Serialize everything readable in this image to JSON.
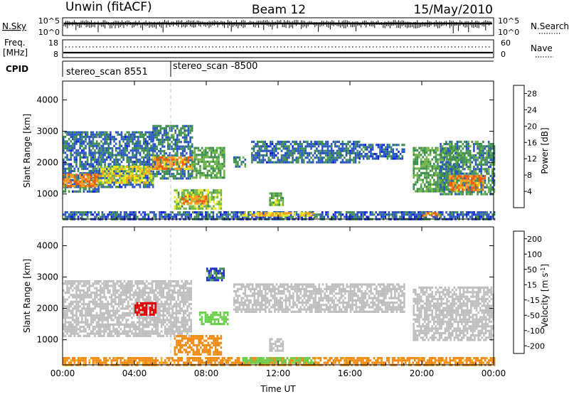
{
  "header": {
    "station": "Unwin (fitACF)",
    "beam": "Beam 12",
    "date": "15/May/2010"
  },
  "panels": {
    "sky": {
      "left_label": "N.Sky",
      "left_ticks": [
        "10^5",
        "10^0"
      ],
      "right_ticks": [
        "10^5",
        "10^0"
      ],
      "right_label": "N.Search"
    },
    "freq": {
      "left_label": "Freq.",
      "left_unit": "[MHz]",
      "left_ticks": [
        "18",
        "8"
      ],
      "right_ticks": [
        "60",
        "0"
      ],
      "right_label": "Nave"
    },
    "cpid": {
      "label": "CPID",
      "programs": [
        {
          "label": "stereo_scan 8551",
          "start_hour": 0
        },
        {
          "label": "stereo_scan -8500",
          "start_hour": 6
        }
      ]
    }
  },
  "chart_data": [
    {
      "type": "heatmap",
      "title": "",
      "xlabel": "Time UT",
      "ylabel": "Slant Range [km]",
      "xlim": [
        0,
        24
      ],
      "ylim": [
        200,
        4600
      ],
      "x_ticks": [
        "00:00",
        "04:00",
        "08:00",
        "12:00",
        "16:00",
        "20:00",
        "00:00"
      ],
      "y_ticks": [
        "1000",
        "2000",
        "3000",
        "4000"
      ],
      "colorbar": {
        "label": "Power [dB]",
        "ticks": [
          "28",
          "24",
          "20",
          "16",
          "12",
          "8",
          "4"
        ],
        "range": [
          0,
          30
        ],
        "colors": [
          "#0a1ee6",
          "#2a56c0",
          "#3f8e52",
          "#6fb548",
          "#eaea22",
          "#f5a020",
          "#f05a10",
          "#e00000"
        ]
      },
      "echo_regions": [
        {
          "t0": 0.0,
          "t1": 2.0,
          "r0": 1100,
          "r1": 3000,
          "value": 7
        },
        {
          "t0": 0.0,
          "t1": 2.0,
          "r0": 1250,
          "r1": 1650,
          "value": 22
        },
        {
          "t0": 2.0,
          "t1": 5.0,
          "r0": 1200,
          "r1": 3000,
          "value": 7
        },
        {
          "t0": 2.0,
          "t1": 5.0,
          "r0": 1350,
          "r1": 1900,
          "value": 17
        },
        {
          "t0": 5.0,
          "t1": 7.2,
          "r0": 1500,
          "r1": 3200,
          "value": 8
        },
        {
          "t0": 5.0,
          "t1": 7.2,
          "r0": 1800,
          "r1": 2200,
          "value": 21
        },
        {
          "t0": 6.2,
          "t1": 8.8,
          "r0": 550,
          "r1": 1150,
          "value": 14
        },
        {
          "t0": 6.6,
          "t1": 8.0,
          "r0": 700,
          "r1": 950,
          "value": 22
        },
        {
          "t0": 7.2,
          "t1": 9.0,
          "r0": 1500,
          "r1": 2500,
          "value": 11
        },
        {
          "t0": 9.5,
          "t1": 10.2,
          "r0": 1900,
          "r1": 2200,
          "value": 9
        },
        {
          "t0": 10.5,
          "t1": 16.5,
          "r0": 2000,
          "r1": 2700,
          "value": 7
        },
        {
          "t0": 16.5,
          "t1": 19.0,
          "r0": 2100,
          "r1": 2600,
          "value": 6
        },
        {
          "t0": 11.5,
          "t1": 12.3,
          "r0": 650,
          "r1": 1050,
          "value": 13
        },
        {
          "t0": 19.5,
          "t1": 22.0,
          "r0": 1100,
          "r1": 2500,
          "value": 11
        },
        {
          "t0": 21.0,
          "t1": 24.0,
          "r0": 1000,
          "r1": 2700,
          "value": 9
        },
        {
          "t0": 21.5,
          "t1": 23.5,
          "r0": 1100,
          "r1": 1600,
          "value": 22
        },
        {
          "t0": 0.0,
          "t1": 24.0,
          "r0": 200,
          "r1": 450,
          "value": 6
        },
        {
          "t0": 10.0,
          "t1": 14.0,
          "r0": 280,
          "r1": 420,
          "value": 19
        },
        {
          "t0": 20.0,
          "t1": 21.0,
          "r0": 300,
          "r1": 420,
          "value": 22
        }
      ]
    },
    {
      "type": "heatmap",
      "title": "",
      "xlabel": "Time UT",
      "ylabel": "Slant Range [km]",
      "xlim": [
        0,
        24
      ],
      "ylim": [
        200,
        4600
      ],
      "x_ticks": [
        "00:00",
        "04:00",
        "08:00",
        "12:00",
        "16:00",
        "20:00",
        "00:00"
      ],
      "y_ticks": [
        "1000",
        "2000",
        "3000",
        "4000"
      ],
      "colorbar": {
        "label": "Velocity [m s^-1]",
        "ticks": [
          "200",
          "100",
          "50",
          "15",
          "-15",
          "-50",
          "-100",
          "-200"
        ],
        "colors": [
          "#1a2fc4",
          "#3f8e52",
          "#6ccf4c",
          "#bebebe",
          "#f7b229",
          "#f08a10",
          "#ef4500",
          "#e00000"
        ]
      },
      "echo_regions": [
        {
          "t0": 0.0,
          "t1": 7.2,
          "r0": 1100,
          "r1": 2900,
          "value": 0
        },
        {
          "t0": 4.0,
          "t1": 5.2,
          "r0": 1800,
          "r1": 2200,
          "value": -200
        },
        {
          "t0": 6.2,
          "t1": 8.8,
          "r0": 550,
          "r1": 1150,
          "value": -50
        },
        {
          "t0": 7.6,
          "t1": 9.2,
          "r0": 1500,
          "r1": 1900,
          "value": 60
        },
        {
          "t0": 8.0,
          "t1": 9.0,
          "r0": 2900,
          "r1": 3300,
          "value": 150
        },
        {
          "t0": 9.5,
          "t1": 19.0,
          "r0": 1900,
          "r1": 2800,
          "value": 0
        },
        {
          "t0": 11.5,
          "t1": 12.3,
          "r0": 650,
          "r1": 1050,
          "value": 0
        },
        {
          "t0": 19.5,
          "t1": 24.0,
          "r0": 1000,
          "r1": 2700,
          "value": 0
        },
        {
          "t0": 0.0,
          "t1": 24.0,
          "r0": 200,
          "r1": 450,
          "value": -40
        },
        {
          "t0": 10.0,
          "t1": 14.0,
          "r0": 300,
          "r1": 450,
          "value": 60
        }
      ]
    }
  ]
}
